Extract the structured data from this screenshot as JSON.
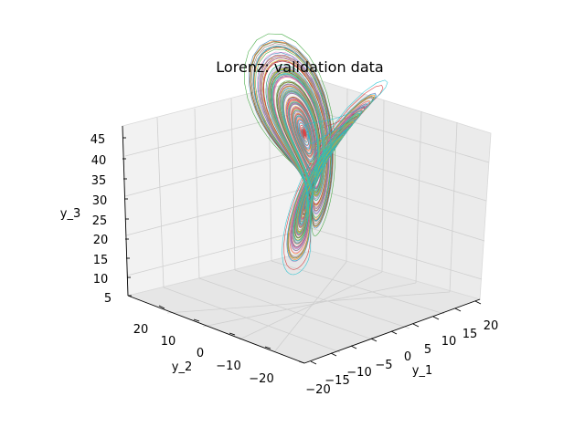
{
  "chart_data": {
    "type": "line",
    "projection": "3d",
    "title": "Lorenz: validation data",
    "xlabel": "y_1",
    "ylabel": "y_2",
    "zlabel": "y_3",
    "xticks": [
      "−20",
      "−15",
      "−10",
      "−5",
      "0",
      "5",
      "10",
      "15",
      "20"
    ],
    "xtick_values": [
      -20,
      -15,
      -10,
      -5,
      0,
      5,
      10,
      15,
      20
    ],
    "yticks": [
      "20",
      "10",
      "0",
      "−10",
      "−20"
    ],
    "ytick_values": [
      20,
      10,
      0,
      -10,
      -20
    ],
    "zticks": [
      "5",
      "10",
      "15",
      "20",
      "25",
      "30",
      "35",
      "40",
      "45"
    ],
    "zlim": [
      5,
      45
    ],
    "grid": true,
    "series_count": 10,
    "colors": [
      "#1f77b4",
      "#ff7f0e",
      "#2ca02c",
      "#d62728",
      "#9467bd",
      "#8c564b",
      "#e377c2",
      "#7f7f7f",
      "#bcbd22",
      "#17becf"
    ]
  }
}
